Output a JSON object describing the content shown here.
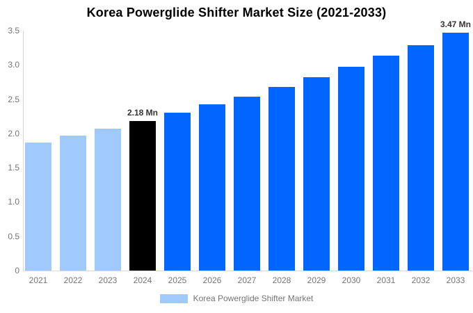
{
  "title": "Korea Powerglide Shifter Market Size (2021-2033)",
  "legend": {
    "label": "Korea Powerglide Shifter Market",
    "swatch_color": "#9fcafb"
  },
  "annotations": [
    {
      "category": "2024",
      "text": "2.18 Mn"
    },
    {
      "category": "2033",
      "text": "3.47 Mn"
    }
  ],
  "colors": {
    "historical_bar": "#9fcafb",
    "base_year_bar": "#000000",
    "forecast_bar": "#0066ff",
    "axis_line": "#d9d9d9",
    "tick_text": "#757575",
    "annotation_text": "#333333",
    "title_text": "#000000",
    "background": "#ffffff"
  },
  "chart_data": {
    "type": "bar",
    "title": "Korea Powerglide Shifter Market Size (2021-2033)",
    "categories": [
      "2021",
      "2022",
      "2023",
      "2024",
      "2025",
      "2026",
      "2027",
      "2028",
      "2029",
      "2030",
      "2031",
      "2032",
      "2033"
    ],
    "values": [
      1.87,
      1.97,
      2.07,
      2.18,
      2.3,
      2.42,
      2.54,
      2.68,
      2.82,
      2.97,
      3.13,
      3.29,
      3.47
    ],
    "bar_colors": [
      "#9fcafb",
      "#9fcafb",
      "#9fcafb",
      "#000000",
      "#0066ff",
      "#0066ff",
      "#0066ff",
      "#0066ff",
      "#0066ff",
      "#0066ff",
      "#0066ff",
      "#0066ff",
      "#0066ff"
    ],
    "unit": "Mn",
    "xlabel": "",
    "ylabel": "",
    "ylim": [
      0,
      3.5
    ],
    "yticks": [
      0,
      0.5,
      1.0,
      1.5,
      2.0,
      2.5,
      3.0,
      3.5
    ],
    "ytick_labels": [
      "0",
      "0.5",
      "1.0",
      "1.5",
      "2.0",
      "2.5",
      "3.0",
      "3.5"
    ],
    "grid": false,
    "legend_position": "bottom"
  }
}
